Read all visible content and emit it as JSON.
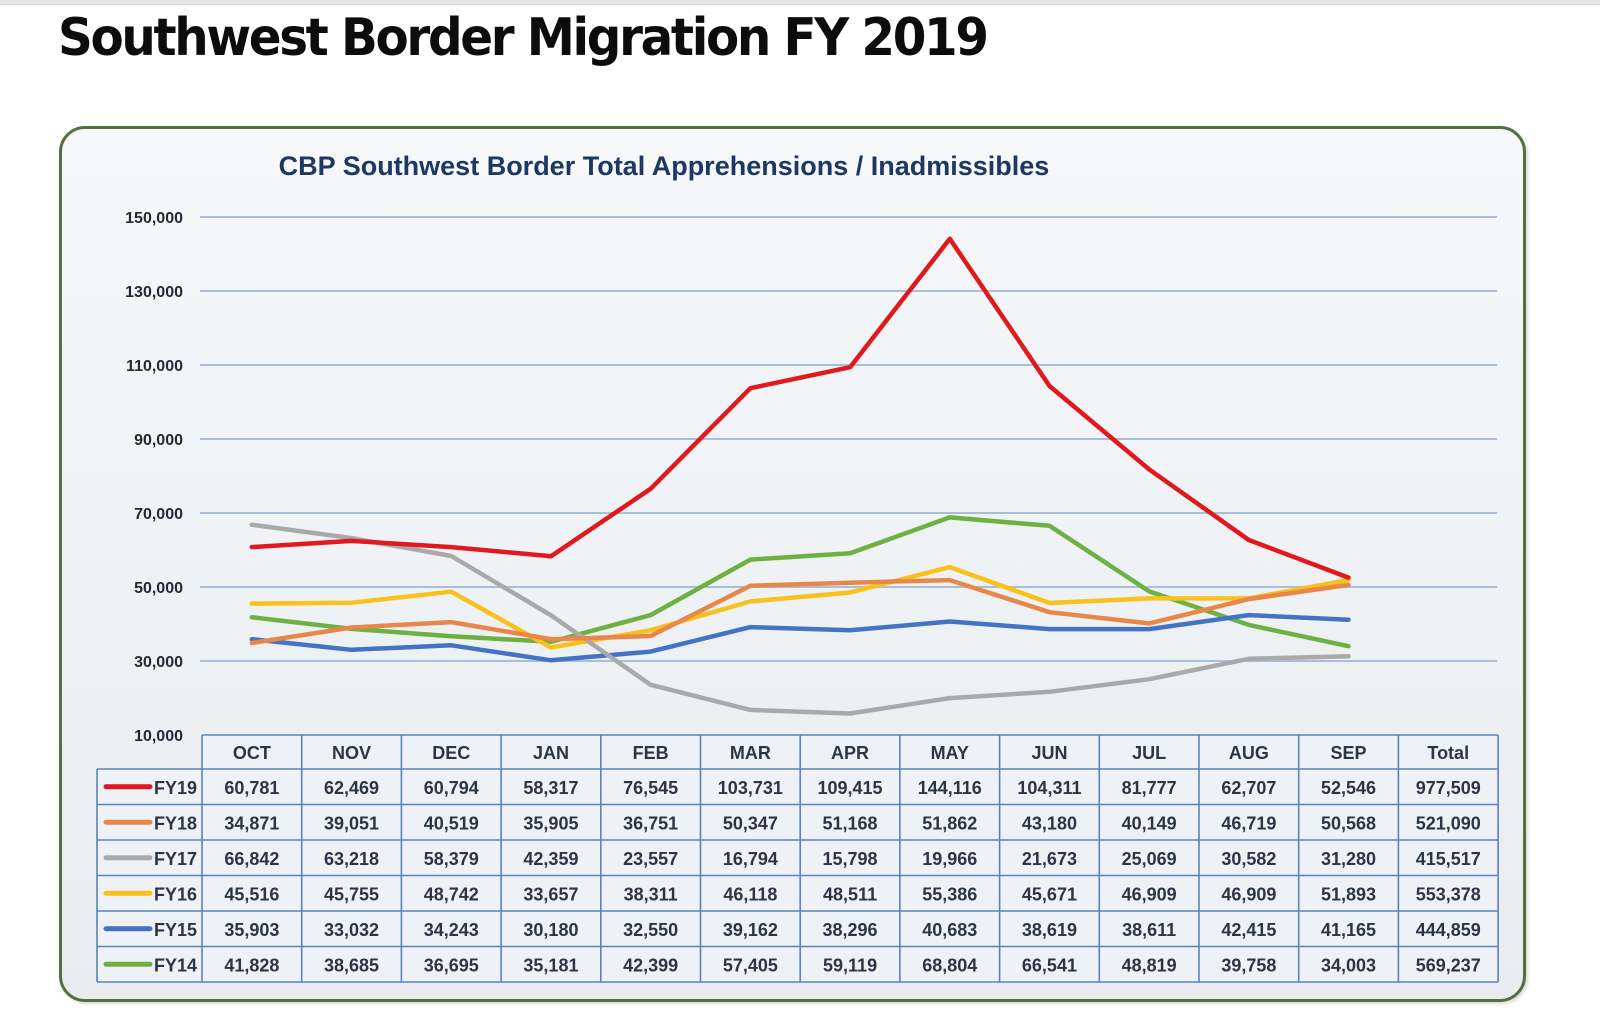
{
  "page": {
    "title": "Southwest Border Migration FY 2019"
  },
  "chart_data": {
    "type": "line",
    "title": "CBP Southwest Border Total Apprehensions / Inadmissibles",
    "xlabel": "",
    "ylabel": "",
    "ylim": [
      10000,
      150000
    ],
    "yticks": [
      150000,
      130000,
      110000,
      90000,
      70000,
      50000,
      30000,
      10000
    ],
    "ytick_labels": [
      "150,000",
      "130,000",
      "110,000",
      "90,000",
      "70,000",
      "50,000",
      "30,000",
      "10,000"
    ],
    "grid": true,
    "legend": "bottom-left (in data table)",
    "categories": [
      "OCT",
      "NOV",
      "DEC",
      "JAN",
      "FEB",
      "MAR",
      "APR",
      "MAY",
      "JUN",
      "JUL",
      "AUG",
      "SEP"
    ],
    "total_label": "Total",
    "series": [
      {
        "name": "FY19",
        "color": "#e0191f",
        "values": [
          60781,
          62469,
          60794,
          58317,
          76545,
          103731,
          109415,
          144116,
          104311,
          81777,
          62707,
          52546
        ],
        "total": 977509,
        "labels": [
          "60,781",
          "62,469",
          "60,794",
          "58,317",
          "76,545",
          "103,731",
          "109,415",
          "144,116",
          "104,311",
          "81,777",
          "62,707",
          "52,546"
        ],
        "total_label": "977,509"
      },
      {
        "name": "FY18",
        "color": "#e8874a",
        "values": [
          34871,
          39051,
          40519,
          35905,
          36751,
          50347,
          51168,
          51862,
          43180,
          40149,
          46719,
          50568
        ],
        "total": 521090,
        "labels": [
          "34,871",
          "39,051",
          "40,519",
          "35,905",
          "36,751",
          "50,347",
          "51,168",
          "51,862",
          "43,180",
          "40,149",
          "46,719",
          "50,568"
        ],
        "total_label": "521,090"
      },
      {
        "name": "FY17",
        "color": "#a9a9a9",
        "values": [
          66842,
          63218,
          58379,
          42359,
          23557,
          16794,
          15798,
          19966,
          21673,
          25069,
          30582,
          31280
        ],
        "total": 415517,
        "labels": [
          "66,842",
          "63,218",
          "58,379",
          "42,359",
          "23,557",
          "16,794",
          "15,798",
          "19,966",
          "21,673",
          "25,069",
          "30,582",
          "31,280"
        ],
        "total_label": "415,517"
      },
      {
        "name": "FY16",
        "color": "#f8c11c",
        "values": [
          45516,
          45755,
          48742,
          33657,
          38311,
          46118,
          48511,
          55386,
          45671,
          46909,
          46909,
          51893
        ],
        "total": 553378,
        "labels": [
          "45,516",
          "45,755",
          "48,742",
          "33,657",
          "38,311",
          "46,118",
          "48,511",
          "55,386",
          "45,671",
          "46,909",
          "46,909",
          "51,893"
        ],
        "total_label": "553,378"
      },
      {
        "name": "FY15",
        "color": "#4472c4",
        "values": [
          35903,
          33032,
          34243,
          30180,
          32550,
          39162,
          38296,
          40683,
          38619,
          38611,
          42415,
          41165
        ],
        "total": 444859,
        "labels": [
          "35,903",
          "33,032",
          "34,243",
          "30,180",
          "32,550",
          "39,162",
          "38,296",
          "40,683",
          "38,619",
          "38,611",
          "42,415",
          "41,165"
        ],
        "total_label": "444,859"
      },
      {
        "name": "FY14",
        "color": "#6fb043",
        "values": [
          41828,
          38685,
          36695,
          35181,
          42399,
          57405,
          59119,
          68804,
          66541,
          48819,
          39758,
          34003
        ],
        "total": 569237,
        "labels": [
          "41,828",
          "38,685",
          "36,695",
          "35,181",
          "42,399",
          "57,405",
          "59,119",
          "68,804",
          "66,541",
          "48,819",
          "39,758",
          "34,003"
        ],
        "total_label": "569,237"
      }
    ]
  }
}
